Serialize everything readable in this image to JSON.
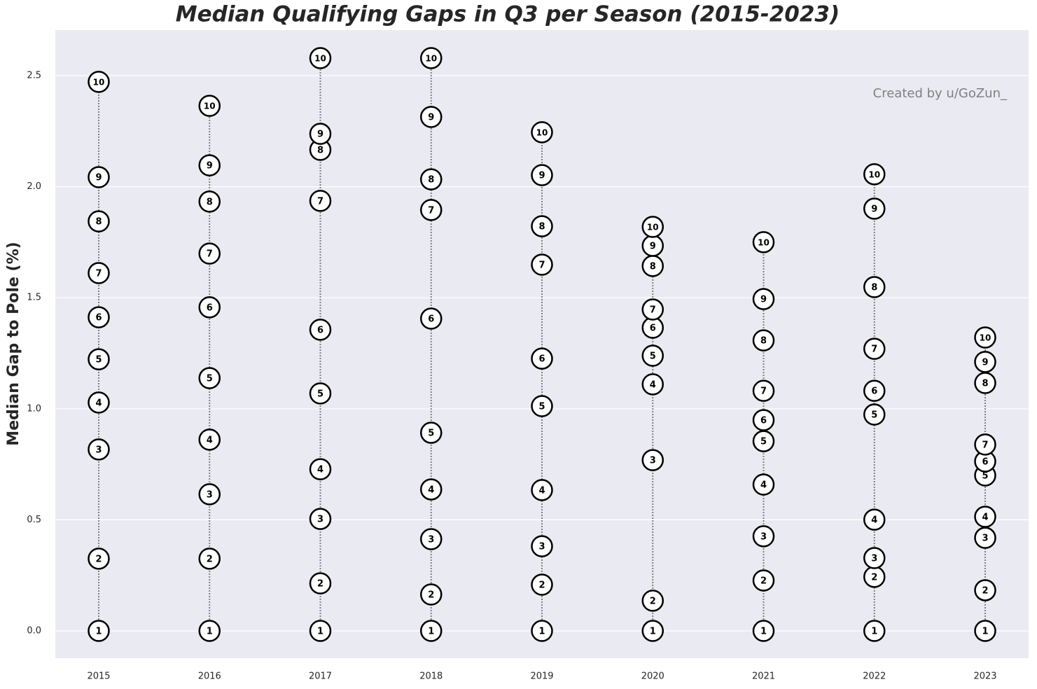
{
  "chart_data": {
    "type": "dot",
    "title": "Median Qualifying Gaps in Q3 per Season (2015-2023)",
    "y_label": "Median Gap to Pole (%)",
    "annotation": "Created by u/GoZun_",
    "categories": [
      "2015",
      "2016",
      "2017",
      "2018",
      "2019",
      "2020",
      "2021",
      "2022",
      "2023"
    ],
    "series": [
      {
        "name": "1",
        "values": [
          0,
          0,
          0,
          0,
          0,
          0,
          0,
          0,
          0
        ]
      },
      {
        "name": "2",
        "values": [
          0.325,
          0.325,
          0.214,
          0.164,
          0.208,
          0.136,
          0.227,
          0.243,
          0.183
        ]
      },
      {
        "name": "3",
        "values": [
          0.817,
          0.615,
          0.504,
          0.413,
          0.381,
          0.769,
          0.426,
          0.328,
          0.419
        ]
      },
      {
        "name": "4",
        "values": [
          1.028,
          0.861,
          0.728,
          0.637,
          0.634,
          1.11,
          0.659,
          0.501,
          0.514
        ]
      },
      {
        "name": "5",
        "values": [
          1.223,
          1.138,
          1.069,
          0.892,
          1.012,
          1.239,
          0.854,
          0.974,
          0.7
        ]
      },
      {
        "name": "6",
        "values": [
          1.412,
          1.457,
          1.356,
          1.406,
          1.226,
          1.365,
          0.949,
          1.081,
          0.763
        ]
      },
      {
        "name": "7",
        "values": [
          1.611,
          1.699,
          1.936,
          1.895,
          1.649,
          1.447,
          1.081,
          1.27,
          0.839
        ]
      },
      {
        "name": "8",
        "values": [
          1.844,
          1.933,
          2.166,
          2.033,
          1.822,
          1.643,
          1.308,
          1.548,
          1.116
        ]
      },
      {
        "name": "9",
        "values": [
          2.043,
          2.096,
          2.238,
          2.314,
          2.052,
          1.734,
          1.494,
          1.901,
          1.211
        ]
      },
      {
        "name": "10",
        "values": [
          2.472,
          2.364,
          2.579,
          2.579,
          2.245,
          1.819,
          1.75,
          2.056,
          1.321
        ]
      }
    ],
    "ylim": [
      -0.123,
      2.705
    ],
    "yticks": [
      {
        "value": 0,
        "label": "0.0"
      },
      0.5,
      {
        "value": 1,
        "label": "1.0"
      },
      1.5,
      {
        "value": 2,
        "label": "2.0"
      },
      2.5
    ],
    "grid": true,
    "color": "#000000",
    "line_color": "#808080",
    "background": "#eaeaf2"
  }
}
